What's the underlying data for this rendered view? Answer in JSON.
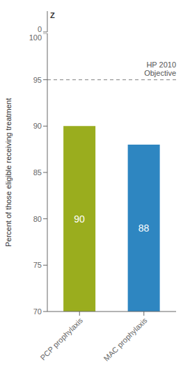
{
  "chart_data": {
    "type": "bar",
    "categories": [
      "PCP prophylaxis",
      "MAC prophylaxis"
    ],
    "values": [
      90,
      88
    ],
    "colors": [
      "#9aad1e",
      "#2e86c1"
    ],
    "data_labels": true,
    "ylabel": "Percent of those eligible receiving treatment",
    "ylim": [
      70,
      100
    ],
    "yticks": [
      70,
      75,
      80,
      85,
      90,
      95,
      100
    ],
    "reference_line": {
      "y": 95,
      "label": "HP 2010\nObjective",
      "color": "#999999"
    },
    "axis_break": {
      "ylim": [
        0,
        3
      ],
      "yticks": [
        0
      ],
      "label": "Z"
    }
  }
}
